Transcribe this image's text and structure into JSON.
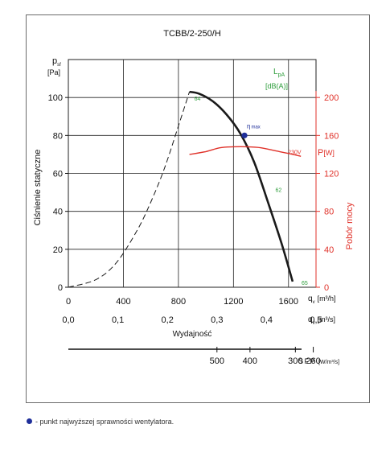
{
  "chart_data": {
    "type": "line",
    "title": "TCBB/2-250/H",
    "y_left": {
      "symbol": "p",
      "subscript": "sf",
      "unit": "[Pa]",
      "label": "Ciśnienie statyczne",
      "ticks": [
        "0",
        "20",
        "40",
        "60",
        "80",
        "100"
      ],
      "range": [
        0,
        120
      ]
    },
    "y_right": {
      "symbol": "P",
      "unit": "[W]",
      "label": "Pobór mocy",
      "ticks": [
        "0",
        "40",
        "80",
        "120",
        "160",
        "200"
      ],
      "range": [
        0,
        240
      ],
      "color": "#e0322a"
    },
    "x_m3h": {
      "ticks": [
        "0",
        "400",
        "800",
        "1200",
        "1600"
      ],
      "range": [
        0,
        1800
      ],
      "label": "q",
      "subscript": "v",
      "unit": "[m³/h]"
    },
    "x_m3s": {
      "ticks": [
        "0,0",
        "0,1",
        "0,2",
        "0,3",
        "0,4",
        "0,5"
      ],
      "label": "q",
      "subscript": "v",
      "unit": "[m³/s]",
      "title": "Wydajność"
    },
    "sfp": {
      "ticks": [
        "500",
        "400",
        "300",
        "260"
      ],
      "positions_m3h": [
        1080,
        1320,
        1650,
        1780
      ],
      "label": "SFP",
      "unit": "[W/m³/s]"
    },
    "noise": {
      "symbol": "L",
      "subscript": "pA",
      "unit": "[dB(A)]",
      "color": "#2e9e3c",
      "points": [
        {
          "x": 880,
          "y": 100,
          "value": "64"
        },
        {
          "x": 1470,
          "y": 52,
          "value": "62"
        },
        {
          "x": 1660,
          "y": 3,
          "value": "65"
        }
      ]
    },
    "series": [
      {
        "axis": "left",
        "style": "solid",
        "color": "#1a1a1a",
        "x": [
          880,
          950,
          1050,
          1150,
          1250,
          1350,
          1450,
          1550,
          1630
        ],
        "y": [
          103,
          102,
          98,
          91,
          81,
          66,
          45,
          23,
          3
        ]
      },
      {
        "axis": "left",
        "style": "dashed",
        "color": "#1a1a1a",
        "x": [
          0,
          200,
          350,
          500,
          600,
          700,
          800,
          880
        ],
        "y": [
          0,
          4,
          13,
          30,
          45,
          63,
          85,
          103
        ]
      },
      {
        "name": "230V",
        "axis": "right",
        "style": "solid",
        "color": "#e0322a",
        "x": [
          880,
          1000,
          1100,
          1200,
          1300,
          1400,
          1500,
          1600,
          1690
        ],
        "y": [
          140,
          143,
          147,
          148,
          148,
          147,
          144,
          141,
          138
        ]
      }
    ],
    "max_efficiency_point": {
      "x": 1280,
      "y": 80,
      "label": "η",
      "subscript": "max",
      "color": "#1f2f9a"
    },
    "grid": true
  },
  "footnote": "- punkt najwyższej sprawności wentylatora."
}
